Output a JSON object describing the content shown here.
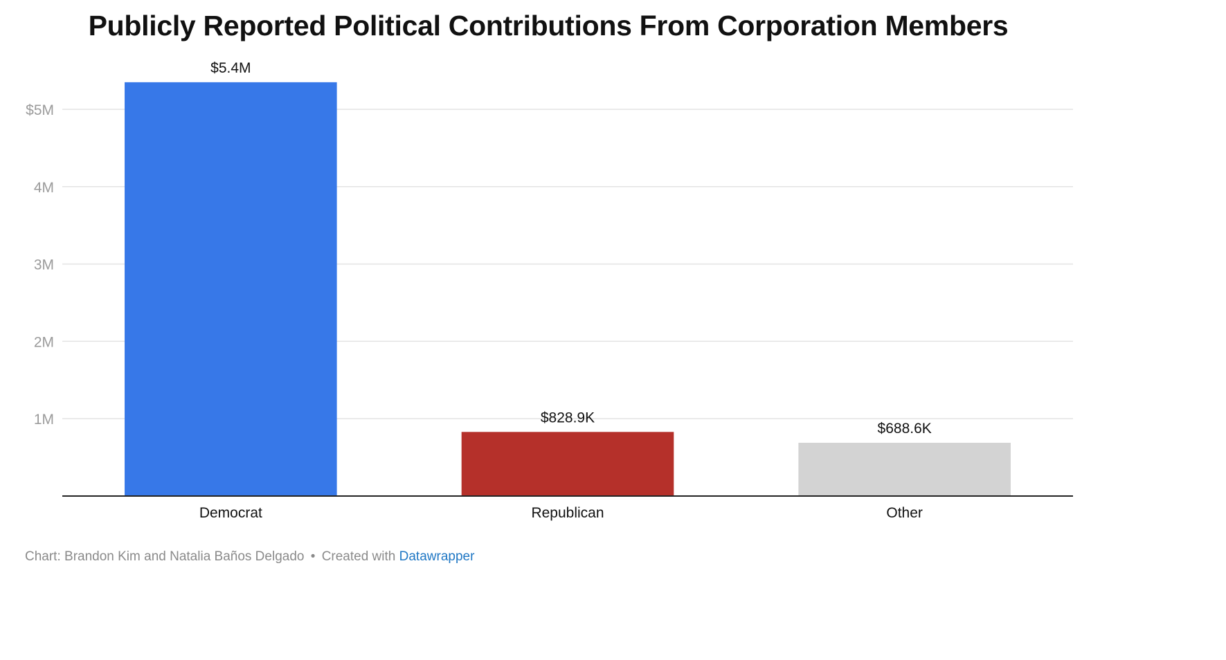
{
  "chart_data": {
    "type": "bar",
    "title": "Publicly Reported Political Contributions From Corporation Members",
    "categories": [
      "Democrat",
      "Republican",
      "Other"
    ],
    "values": [
      5350000,
      828900,
      688600
    ],
    "value_labels": [
      "$5.4M",
      "$828.9K",
      "$688.6K"
    ],
    "colors": [
      "#3778e8",
      "#b5302a",
      "#d3d3d3"
    ],
    "ylim": [
      0,
      5000000
    ],
    "yticks": [
      {
        "value": 1000000,
        "label": "1M"
      },
      {
        "value": 2000000,
        "label": "2M"
      },
      {
        "value": 3000000,
        "label": "3M"
      },
      {
        "value": 4000000,
        "label": "4M"
      },
      {
        "value": 5000000,
        "label": "$5M"
      }
    ],
    "xlabel": "",
    "ylabel": "",
    "grid": true,
    "legend": "none"
  },
  "footer": {
    "credit": "Chart: Brandon Kim and Natalia Baños Delgado",
    "separator": "•",
    "created_with": "Created with",
    "tool_link": "Datawrapper"
  }
}
